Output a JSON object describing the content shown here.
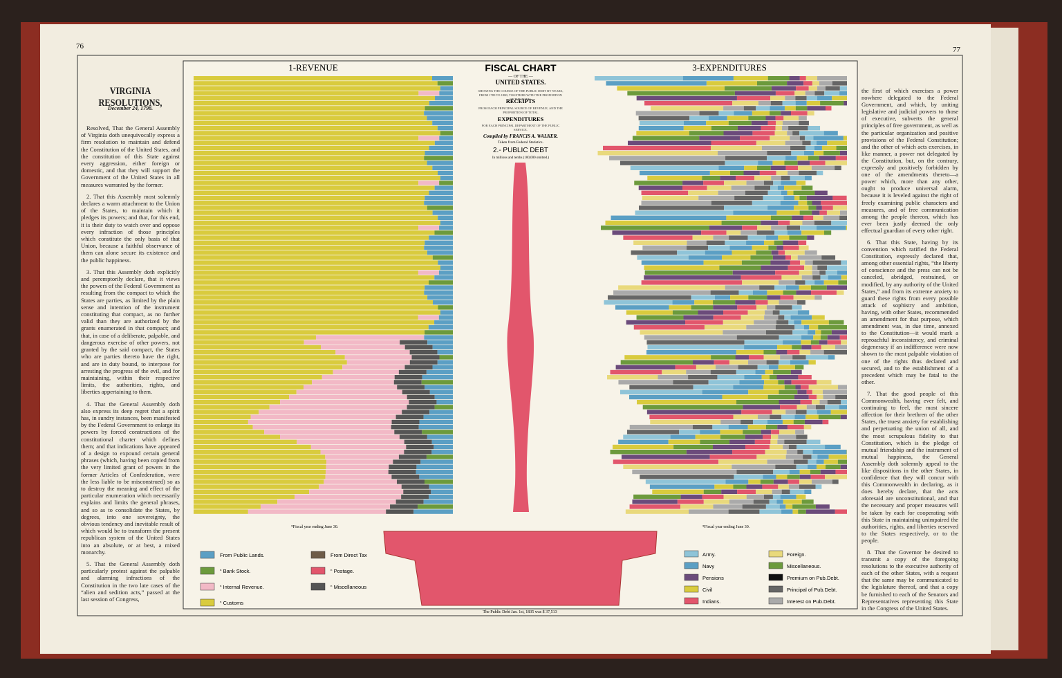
{
  "page": {
    "left_number": "76",
    "right_number": "77"
  },
  "resolutions": {
    "title": "VIRGINIA RESOLUTIONS,",
    "date": "December 24, 1798.",
    "left_paragraphs": [
      "Resolved, That the General Assembly of Virginia doth unequivocally express a firm resolution to maintain and defend the Constitution of the United States, and the constitution of this State against every aggression, either foreign or domestic, and that they will support the Government of the United States in all measures warranted by the former.",
      "2. That this Assembly most solemnly declares a warm attachment to the Union of the States, to maintain which it pledges its powers; and that, for this end, it is their duty to watch over and oppose every infraction of those principles which constitute the only basis of that Union, because a faithful observance of them can alone secure its existence and the public happiness.",
      "3. That this Assembly doth explicitly and peremptorily declare, that it views the powers of the Federal Government as resulting from the compact to which the States are parties, as limited by the plain sense and intention of the instrument constituting that compact, as no further valid than they are authorized by the grants enumerated in that compact; and that, in case of a deliberate, palpable, and dangerous exercise of other powers, not granted by the said compact, the States who are parties thereto have the right, and are in duty bound, to interpose for arresting the progress of the evil, and for maintaining, within their respective limits, the authorities, rights, and liberties appertaining to them.",
      "4. That the General Assembly doth also express its deep regret that a spirit has, in sundry instances, been manifested by the Federal Government to enlarge its powers by forced constructions of the constitutional charter which defines them; and that indications have appeared of a design to expound certain general phrases (which, having been copied from the very limited grant of powers in the former Articles of Confederation, were the less liable to be misconstrued) so as to destroy the meaning and effect of the particular enumeration which necessarily explains and limits the general phrases, and so as to consolidate the States, by degrees, into one sovereignty, the obvious tendency and inevitable result of which would be to transform the present republican system of the United States into an absolute, or at best, a mixed monarchy.",
      "5. That the General Assembly doth particularly protest against the palpable and alarming infractions of the Constitution in the two late cases of the “alien and sedition acts,” passed at the last session of Congress,"
    ],
    "right_paragraphs": [
      "the first of which exercises a power nowhere delegated to the Federal Government, and which, by uniting legislative and judicial powers to those of executive, subverts the general principles of free government, as well as the particular organization and positive provisions of the Federal Constitution; and the other of which acts exercises, in like manner, a power not delegated by the Constitution, but, on the contrary, expressly and positively forbidden by one of the amendments thereto—a power which, more than any other, ought to produce universal alarm, because it is leveled against the right of freely examining public characters and measures, and of free communication among the people thereon, which has ever been justly deemed the only effectual guardian of every other right.",
      "6. That this State, having by its convention which ratified the Federal Constitution, expressly declared that, among other essential rights, “the liberty of conscience and the press can not be canceled, abridged, restrained, or modified, by any authority of the United States,” and from its extreme anxiety to guard these rights from every possible attack of sophistry and ambition, having, with other States, recommended an amendment for that purpose, which amendment was, in due time, annexed to the Constitution—it would mark a reproachful inconsistency, and criminal degeneracy if an indifference were now shown to the most palpable violation of one of the rights thus declared and secured, and to the establishment of a precedent which may be fatal to the other.",
      "7. That the good people of this Commonwealth, having ever felt, and continuing to feel, the most sincere affection for their brethren of the other States, the truest anxiety for establishing and perpetuating the union of all, and the most scrupulous fidelity to that Constitution, which is the pledge of mutual friendship and the instrument of mutual happiness, the General Assembly doth solemnly appeal to the like dispositions in the other States, in confidence that they will concur with this Commonwealth in declaring, as it does hereby declare, that the acts aforesaid are unconstitutional, and that the necessary and proper measures will be taken by each for cooperating with this State in maintaining unimpaired the authorities, rights, and liberties reserved to the States respectively, or to the people.",
      "8. That the Governor be desired to transmit a copy of the foregoing resolutions to the executive authority of each of the other States, with a request that the same may be communicated to the legislature thereof, and that a copy be furnished to each of the Senators and Representatives representing this State in the Congress of the United States."
    ]
  },
  "chart": {
    "title": "FISCAL CHART",
    "of_the": "— OF THE —",
    "country": "UNITED STATES.",
    "description_1": "SHOWING THE COURSE OF THE PUBLIC DEBT BY YEARS, FROM 1789 TO 1880, TOGETHER WITH THE PROPORTION OF THE TOTAL",
    "receipts": "RECEIPTS",
    "description_2": "FROM EACH PRINCIPAL SOURCE OF REVENUE, AND THE PROPORTION OF TOTAL",
    "expenditures": "EXPENDITURES",
    "description_3": "FOR EACH PRINCIPAL DEPARTMENT OF THE PUBLIC SERVICE.",
    "compiled": "Compiled by FRANCIS A. WALKER.",
    "source": "Taken from Federal Statistics.",
    "revenue_title": "1-REVENUE",
    "debt_title": "2.- PUBLIC DEBT",
    "expenditures_title": "3-EXPENDITURES",
    "units": "In millions and tenths (100,000 omitted.)",
    "revenue_note": "*Fiscal year ending June 30.",
    "expenditure_note": "*Fiscal year ending June 30.",
    "debt_note": "The Public Debt Jan. 1st, 1835 was $ 37,513"
  },
  "revenue_legend": [
    {
      "label": "From Public Lands.",
      "color": "#5b9fc4"
    },
    {
      "label": "“ Bank Stock.",
      "color": "#6c9a3c"
    },
    {
      "label": "“ Internal Revenue.",
      "color": "#f2b9c6"
    },
    {
      "label": "“ Customs",
      "color": "#d9cb3e"
    },
    {
      "label": "From Direct Tax",
      "color": "#6e5c48"
    },
    {
      "label": "“ Postage.",
      "color": "#e2566c"
    },
    {
      "label": "“ Miscellaneous",
      "color": "#555555"
    }
  ],
  "expenditure_legend": [
    {
      "label": "Army.",
      "color": "#8fc4d8"
    },
    {
      "label": "Navy",
      "color": "#5b9fc4"
    },
    {
      "label": "Pensions",
      "color": "#6b4b7b"
    },
    {
      "label": "Civil",
      "color": "#d9cb3e"
    },
    {
      "label": "Indians.",
      "color": "#e2566c"
    },
    {
      "label": "Foreign.",
      "color": "#e9d97c"
    },
    {
      "label": "Miscellaneous.",
      "color": "#6c9a3c"
    },
    {
      "label": "Premium on Pub.Debt.",
      "color": "#111111"
    },
    {
      "label": "Principal of Pub.Debt.",
      "color": "#666666"
    },
    {
      "label": "Interest on Pub.Debt.",
      "color": "#aaaaaa"
    }
  ]
}
